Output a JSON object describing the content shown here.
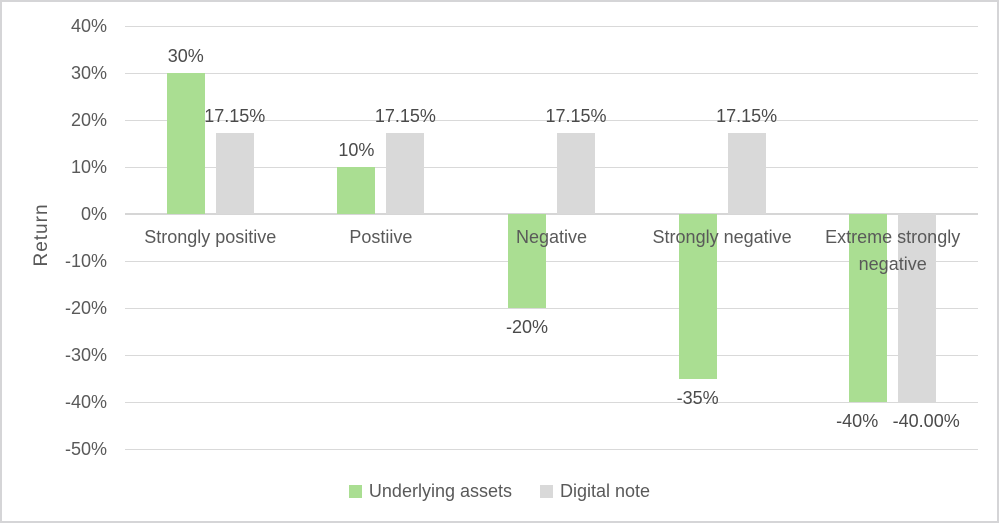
{
  "chart_data": {
    "type": "bar",
    "title": "",
    "ylabel": "Return",
    "categories": [
      "Strongly positive",
      "Postiive",
      "Negative",
      "Strongly negative",
      "Extreme strongly negative"
    ],
    "series": [
      {
        "name": "Underlying assets",
        "color": "#aade92",
        "values": [
          30,
          10,
          -20,
          -35,
          -40
        ],
        "labels": [
          "30%",
          "10%",
          "-20%",
          "-35%",
          "-40%"
        ]
      },
      {
        "name": "Digital note",
        "color": "#d9d9d9",
        "values": [
          17.15,
          17.15,
          17.15,
          17.15,
          -40
        ],
        "labels": [
          "17.15%",
          "17.15%",
          "17.15%",
          "17.15%",
          "-40.00%"
        ]
      }
    ],
    "y_axis": {
      "min": -50,
      "max": 40,
      "step": 10,
      "tick_labels": [
        "40%",
        "30%",
        "20%",
        "10%",
        "0%",
        "-10%",
        "-20%",
        "-30%",
        "-40%",
        "-50%"
      ]
    },
    "grid": true,
    "legend_position": "bottom",
    "colors": {
      "grid": "#d9d9d9",
      "axis_text": "#595959",
      "value_label_text": "#4a4a4a",
      "frame_border": "#d5d5d7"
    }
  }
}
